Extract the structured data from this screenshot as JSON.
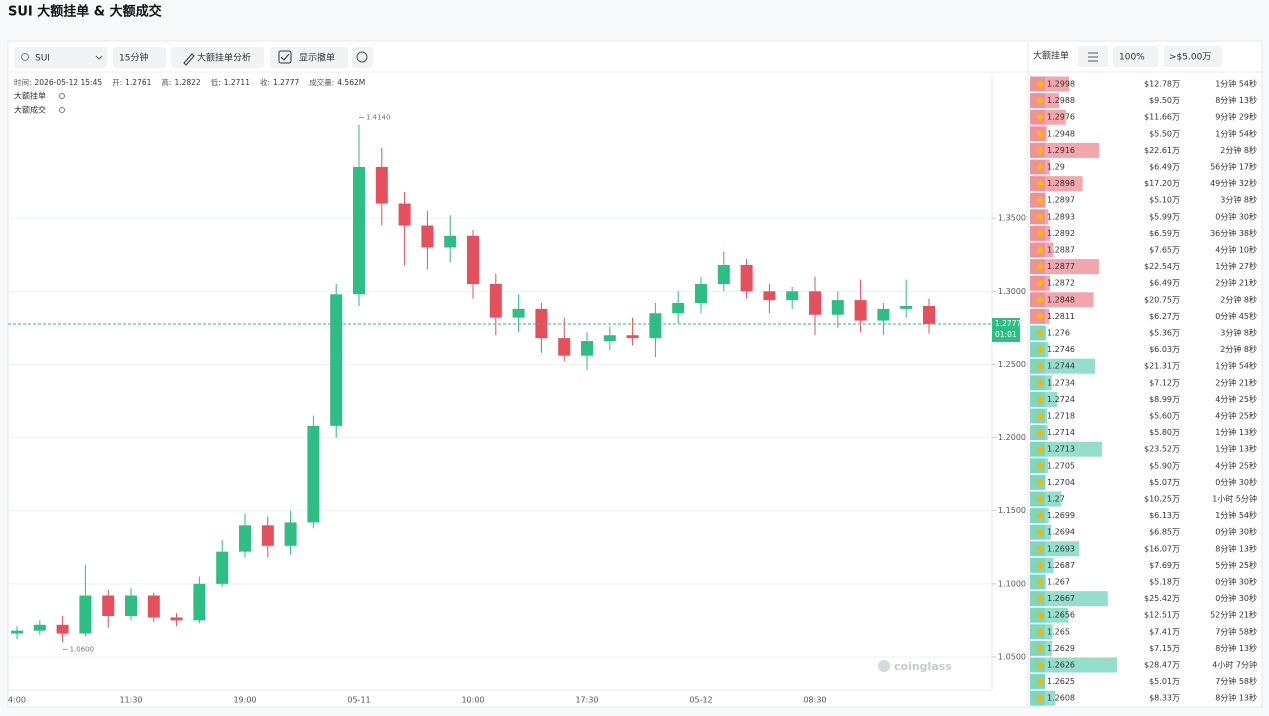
{
  "title": "SUI 大额挂单 & 大额成交",
  "toolbar": {
    "symbol": "SUI",
    "interval": "15分钟",
    "analysis": "大额挂单分析",
    "show_cancel": "显示撤单"
  },
  "chart_data": {
    "type": "candlestick",
    "info": [
      {
        "label": "时间:",
        "value": "2026-05-12 15:45"
      },
      {
        "label": "开:",
        "value": 1.2761
      },
      {
        "label": "高:",
        "value": 1.2822
      },
      {
        "label": "低:",
        "value": 1.2711
      },
      {
        "label": "收:",
        "value": 1.2777
      },
      {
        "label": "成交量:",
        "value": "4.562M"
      }
    ],
    "legend": [
      "大额挂单",
      "大额成交"
    ],
    "categories": [
      "4:00",
      null,
      null,
      null,
      null,
      "11:30",
      null,
      null,
      null,
      null,
      "19:00",
      null,
      null,
      null,
      null,
      "05-11",
      null,
      null,
      null,
      null,
      "10:00",
      null,
      null,
      null,
      null,
      "17:30",
      null,
      null,
      null,
      null,
      "05-12",
      null,
      null,
      null,
      null,
      "08:30",
      null,
      null,
      null,
      null,
      null
    ],
    "open": [
      1.066,
      1.068,
      1.072,
      1.066,
      1.092,
      1.078,
      1.092,
      1.077,
      1.075,
      1.1,
      1.122,
      1.14,
      1.126,
      1.142,
      1.208,
      1.298,
      1.385,
      1.36,
      1.345,
      1.33,
      1.338,
      1.305,
      1.282,
      1.288,
      1.268,
      1.256,
      1.266,
      1.27,
      1.268,
      1.285,
      1.292,
      1.305,
      1.318,
      1.3,
      1.294,
      1.3,
      1.284,
      1.294,
      1.28,
      1.288,
      1.29
    ],
    "high": [
      1.071,
      1.075,
      1.078,
      1.113,
      1.096,
      1.097,
      1.094,
      1.08,
      1.105,
      1.13,
      1.148,
      1.146,
      1.15,
      1.215,
      1.305,
      1.414,
      1.398,
      1.368,
      1.355,
      1.352,
      1.342,
      1.312,
      1.298,
      1.292,
      1.282,
      1.272,
      1.276,
      1.282,
      1.292,
      1.3,
      1.31,
      1.327,
      1.322,
      1.305,
      1.303,
      1.31,
      1.3,
      1.308,
      1.292,
      1.308,
      1.295
    ],
    "low": [
      1.062,
      1.065,
      1.06,
      1.064,
      1.07,
      1.075,
      1.074,
      1.071,
      1.073,
      1.098,
      1.118,
      1.118,
      1.12,
      1.138,
      1.2,
      1.29,
      1.345,
      1.318,
      1.315,
      1.32,
      1.295,
      1.27,
      1.272,
      1.258,
      1.252,
      1.246,
      1.26,
      1.263,
      1.255,
      1.278,
      1.285,
      1.3,
      1.295,
      1.285,
      1.288,
      1.27,
      1.275,
      1.272,
      1.27,
      1.282,
      1.271
    ],
    "close": [
      1.068,
      1.072,
      1.066,
      1.092,
      1.078,
      1.092,
      1.077,
      1.075,
      1.1,
      1.122,
      1.14,
      1.126,
      1.142,
      1.208,
      1.298,
      1.385,
      1.36,
      1.345,
      1.33,
      1.338,
      1.305,
      1.282,
      1.288,
      1.268,
      1.256,
      1.266,
      1.27,
      1.268,
      1.285,
      1.292,
      1.305,
      1.318,
      1.3,
      1.294,
      1.3,
      1.284,
      1.294,
      1.28,
      1.288,
      1.29,
      1.2777
    ],
    "up_color": "#2ebd85",
    "down_color": "#e5505c",
    "ylim": [
      1.0274,
      1.4486
    ],
    "yticks": [
      {
        "value": 1.05,
        "label": "1.0500"
      },
      {
        "value": 1.1,
        "label": "1.1000"
      },
      {
        "value": 1.15,
        "label": "1.1500"
      },
      {
        "value": 1.2,
        "label": "1.2000"
      },
      {
        "value": 1.25,
        "label": "1.2500"
      },
      {
        "value": 1.3,
        "label": "1.3000"
      },
      {
        "value": 1.35,
        "label": "1.3500"
      }
    ],
    "grid": true,
    "annotations": [
      {
        "value": 1.414,
        "label": "1.4140"
      },
      {
        "value": 1.06,
        "label": "1.0600"
      }
    ],
    "last_price": {
      "value": 1.2777,
      "label": "1.2777"
    },
    "countdown": "01:01",
    "watermark": "coinglass"
  },
  "order_book": {
    "title": "大额挂单",
    "depth": "100%",
    "filter": ">$5.00万",
    "ask_color": "#e5505c",
    "bid_color": "#2ebd9a",
    "rows": [
      {
        "price": 1.2998,
        "amount": 12.78,
        "amount_label": "$12.78万",
        "time": "1分钟 54秒",
        "side": "ask"
      },
      {
        "price": 1.2988,
        "amount": 9.5,
        "amount_label": "$9.50万",
        "time": "8分钟 13秒",
        "side": "ask"
      },
      {
        "price": 1.2976,
        "amount": 11.66,
        "amount_label": "$11.66万",
        "time": "9分钟 29秒",
        "side": "ask"
      },
      {
        "price": 1.2948,
        "amount": 5.5,
        "amount_label": "$5.50万",
        "time": "1分钟 54秒",
        "side": "ask"
      },
      {
        "price": 1.2916,
        "amount": 22.61,
        "amount_label": "$22.61万",
        "time": "2分钟 8秒",
        "side": "ask"
      },
      {
        "price": 1.29,
        "amount": 6.49,
        "amount_label": "$6.49万",
        "time": "56分钟 17秒",
        "side": "ask"
      },
      {
        "price": 1.2898,
        "amount": 17.2,
        "amount_label": "$17.20万",
        "time": "49分钟 32秒",
        "side": "ask"
      },
      {
        "price": 1.2897,
        "amount": 5.1,
        "amount_label": "$5.10万",
        "time": "3分钟 8秒",
        "side": "ask"
      },
      {
        "price": 1.2893,
        "amount": 5.99,
        "amount_label": "$5.99万",
        "time": "0分钟 30秒",
        "side": "ask"
      },
      {
        "price": 1.2892,
        "amount": 6.59,
        "amount_label": "$6.59万",
        "time": "36分钟 38秒",
        "side": "ask"
      },
      {
        "price": 1.2887,
        "amount": 7.65,
        "amount_label": "$7.65万",
        "time": "4分钟 10秒",
        "side": "ask"
      },
      {
        "price": 1.2877,
        "amount": 22.54,
        "amount_label": "$22.54万",
        "time": "1分钟 27秒",
        "side": "ask"
      },
      {
        "price": 1.2872,
        "amount": 6.49,
        "amount_label": "$6.49万",
        "time": "2分钟 21秒",
        "side": "ask"
      },
      {
        "price": 1.2848,
        "amount": 20.75,
        "amount_label": "$20.75万",
        "time": "2分钟 8秒",
        "side": "ask"
      },
      {
        "price": 1.2811,
        "amount": 6.27,
        "amount_label": "$6.27万",
        "time": "0分钟 45秒",
        "side": "ask"
      },
      {
        "price": 1.276,
        "amount": 5.36,
        "amount_label": "$5.36万",
        "time": "3分钟 8秒",
        "side": "bid"
      },
      {
        "price": 1.2746,
        "amount": 6.03,
        "amount_label": "$6.03万",
        "time": "2分钟 8秒",
        "side": "bid"
      },
      {
        "price": 1.2744,
        "amount": 21.31,
        "amount_label": "$21.31万",
        "time": "1分钟 54秒",
        "side": "bid"
      },
      {
        "price": 1.2734,
        "amount": 7.12,
        "amount_label": "$7.12万",
        "time": "2分钟 21秒",
        "side": "bid"
      },
      {
        "price": 1.2724,
        "amount": 8.99,
        "amount_label": "$8.99万",
        "time": "4分钟 25秒",
        "side": "bid"
      },
      {
        "price": 1.2718,
        "amount": 5.6,
        "amount_label": "$5.60万",
        "time": "4分钟 25秒",
        "side": "bid"
      },
      {
        "price": 1.2714,
        "amount": 5.8,
        "amount_label": "$5.80万",
        "time": "1分钟 13秒",
        "side": "bid"
      },
      {
        "price": 1.2713,
        "amount": 23.52,
        "amount_label": "$23.52万",
        "time": "1分钟 13秒",
        "side": "bid"
      },
      {
        "price": 1.2705,
        "amount": 5.9,
        "amount_label": "$5.90万",
        "time": "4分钟 25秒",
        "side": "bid"
      },
      {
        "price": 1.2704,
        "amount": 5.07,
        "amount_label": "$5.07万",
        "time": "0分钟 30秒",
        "side": "bid"
      },
      {
        "price": 1.27,
        "amount": 10.25,
        "amount_label": "$10.25万",
        "time": "1小时 5分钟",
        "side": "bid"
      },
      {
        "price": 1.2699,
        "amount": 6.13,
        "amount_label": "$6.13万",
        "time": "1分钟 54秒",
        "side": "bid"
      },
      {
        "price": 1.2694,
        "amount": 6.85,
        "amount_label": "$6.85万",
        "time": "0分钟 30秒",
        "side": "bid"
      },
      {
        "price": 1.2693,
        "amount": 16.07,
        "amount_label": "$16.07万",
        "time": "8分钟 13秒",
        "side": "bid"
      },
      {
        "price": 1.2687,
        "amount": 7.69,
        "amount_label": "$7.69万",
        "time": "5分钟 25秒",
        "side": "bid"
      },
      {
        "price": 1.267,
        "amount": 5.18,
        "amount_label": "$5.18万",
        "time": "0分钟 30秒",
        "side": "bid"
      },
      {
        "price": 1.2667,
        "amount": 25.42,
        "amount_label": "$25.42万",
        "time": "0分钟 30秒",
        "side": "bid"
      },
      {
        "price": 1.2656,
        "amount": 12.51,
        "amount_label": "$12.51万",
        "time": "52分钟 21秒",
        "side": "bid"
      },
      {
        "price": 1.265,
        "amount": 7.41,
        "amount_label": "$7.41万",
        "time": "7分钟 58秒",
        "side": "bid"
      },
      {
        "price": 1.2629,
        "amount": 7.15,
        "amount_label": "$7.15万",
        "time": "8分钟 13秒",
        "side": "bid"
      },
      {
        "price": 1.2626,
        "amount": 28.47,
        "amount_label": "$28.47万",
        "time": "4小时 7分钟",
        "side": "bid"
      },
      {
        "price": 1.2625,
        "amount": 5.01,
        "amount_label": "$5.01万",
        "time": "7分钟 58秒",
        "side": "bid"
      },
      {
        "price": 1.2608,
        "amount": 8.33,
        "amount_label": "$8.33万",
        "time": "8分钟 13秒",
        "side": "bid"
      }
    ]
  }
}
